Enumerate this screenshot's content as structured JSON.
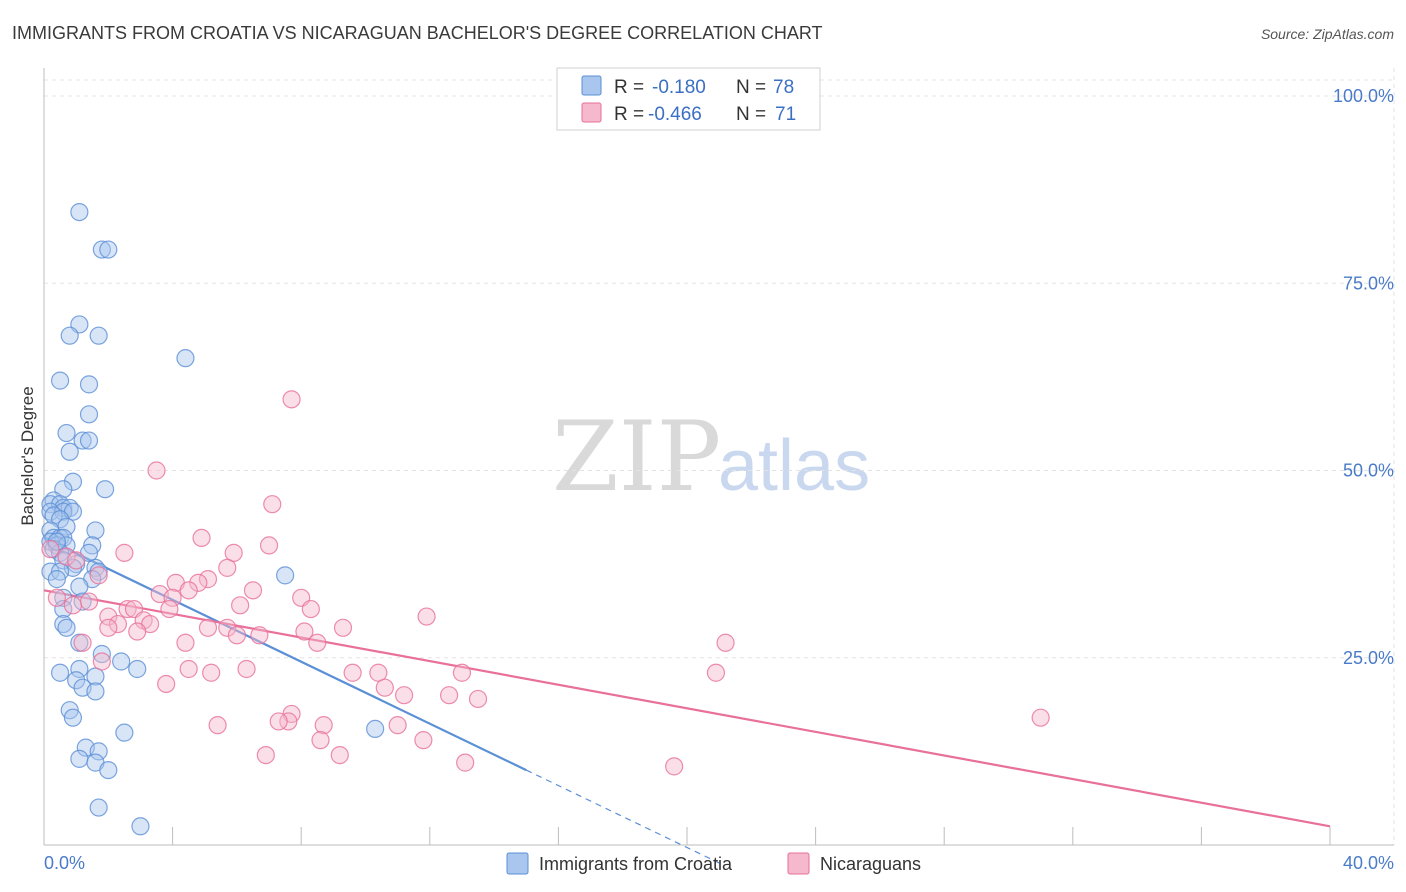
{
  "chart_data": {
    "type": "scatter",
    "title": "IMMIGRANTS FROM CROATIA VS NICARAGUAN BACHELOR'S DEGREE CORRELATION CHART",
    "source": "Source: ZipAtlas.com",
    "ylabel": "Bachelor's Degree",
    "xlabel": "",
    "xlim": [
      0,
      40
    ],
    "ylim": [
      0,
      100
    ],
    "x_tick_labels": {
      "min": "0.0%",
      "max": "40.0%"
    },
    "y_ticks": [
      {
        "value": 25,
        "label": "25.0%"
      },
      {
        "value": 50,
        "label": "50.0%"
      },
      {
        "value": 75,
        "label": "75.0%"
      },
      {
        "value": 100,
        "label": "100.0%"
      }
    ],
    "grid": true,
    "legend_position": "top-center",
    "watermark": {
      "part1": "ZIP",
      "part2": "atlas"
    },
    "series": [
      {
        "name": "Immigrants from Croatia",
        "color": "#5b8fd6",
        "fill": "#a9c6ee",
        "R_label": "R =",
        "R": "-0.180",
        "N_label": "N =",
        "N": "78",
        "trend": {
          "x0": 0.0,
          "y0": 41.0,
          "x1": 15.0,
          "y1": 10.0,
          "dash_to_x": 21.0
        },
        "points": [
          [
            1.1,
            84.5
          ],
          [
            1.8,
            79.5
          ],
          [
            2.0,
            79.5
          ],
          [
            1.1,
            69.5
          ],
          [
            0.8,
            68.0
          ],
          [
            1.7,
            68.0
          ],
          [
            4.4,
            65.0
          ],
          [
            0.5,
            62.0
          ],
          [
            1.4,
            61.5
          ],
          [
            1.4,
            57.5
          ],
          [
            0.7,
            55.0
          ],
          [
            1.2,
            54.0
          ],
          [
            1.4,
            54.0
          ],
          [
            0.8,
            52.5
          ],
          [
            0.9,
            48.5
          ],
          [
            0.6,
            47.5
          ],
          [
            1.9,
            47.5
          ],
          [
            0.3,
            46.0
          ],
          [
            0.2,
            45.5
          ],
          [
            0.5,
            45.5
          ],
          [
            0.6,
            45.0
          ],
          [
            0.8,
            45.0
          ],
          [
            0.2,
            44.5
          ],
          [
            0.6,
            44.5
          ],
          [
            0.9,
            44.5
          ],
          [
            0.3,
            44.0
          ],
          [
            0.5,
            43.5
          ],
          [
            0.7,
            42.5
          ],
          [
            0.2,
            42.0
          ],
          [
            1.6,
            42.0
          ],
          [
            0.3,
            41.0
          ],
          [
            0.5,
            41.0
          ],
          [
            0.6,
            41.0
          ],
          [
            0.2,
            40.5
          ],
          [
            0.4,
            40.0
          ],
          [
            0.7,
            40.0
          ],
          [
            0.3,
            39.5
          ],
          [
            1.5,
            40.0
          ],
          [
            0.5,
            39.0
          ],
          [
            1.4,
            39.0
          ],
          [
            0.6,
            38.0
          ],
          [
            1.0,
            37.5
          ],
          [
            0.9,
            37.0
          ],
          [
            1.6,
            37.0
          ],
          [
            0.2,
            36.5
          ],
          [
            0.5,
            36.5
          ],
          [
            1.7,
            36.5
          ],
          [
            7.5,
            36.0
          ],
          [
            0.4,
            35.5
          ],
          [
            1.5,
            35.5
          ],
          [
            1.1,
            34.5
          ],
          [
            0.6,
            33.0
          ],
          [
            1.2,
            32.5
          ],
          [
            0.6,
            31.5
          ],
          [
            0.6,
            29.5
          ],
          [
            0.7,
            29.0
          ],
          [
            1.1,
            27.0
          ],
          [
            1.8,
            25.5
          ],
          [
            2.4,
            24.5
          ],
          [
            2.9,
            23.5
          ],
          [
            1.1,
            23.5
          ],
          [
            0.5,
            23.0
          ],
          [
            1.6,
            22.5
          ],
          [
            1.0,
            22.0
          ],
          [
            1.2,
            21.0
          ],
          [
            1.6,
            20.5
          ],
          [
            0.8,
            18.0
          ],
          [
            0.9,
            17.0
          ],
          [
            2.5,
            15.0
          ],
          [
            10.3,
            15.5
          ],
          [
            1.3,
            13.0
          ],
          [
            1.7,
            12.5
          ],
          [
            1.1,
            11.5
          ],
          [
            1.6,
            11.0
          ],
          [
            2.0,
            10.0
          ],
          [
            1.7,
            5.0
          ],
          [
            3.0,
            2.5
          ],
          [
            0.4,
            40.5
          ]
        ]
      },
      {
        "name": "Nicaraguans",
        "color": "#e8709a",
        "fill": "#f5b8cc",
        "R_label": "R =",
        "R": "-0.466",
        "N_label": "N =",
        "N": "71",
        "trend": {
          "x0": 0.0,
          "y0": 34.0,
          "x1": 40.0,
          "y1": 2.5
        },
        "points": [
          [
            7.7,
            59.5
          ],
          [
            3.5,
            50.0
          ],
          [
            7.1,
            45.5
          ],
          [
            4.9,
            41.0
          ],
          [
            7.0,
            40.0
          ],
          [
            0.2,
            39.5
          ],
          [
            0.7,
            38.5
          ],
          [
            2.5,
            39.0
          ],
          [
            5.9,
            39.0
          ],
          [
            1.0,
            38.0
          ],
          [
            5.7,
            37.0
          ],
          [
            1.7,
            36.0
          ],
          [
            4.1,
            35.0
          ],
          [
            5.1,
            35.5
          ],
          [
            4.8,
            35.0
          ],
          [
            6.5,
            34.0
          ],
          [
            4.5,
            34.0
          ],
          [
            3.6,
            33.5
          ],
          [
            4.0,
            33.0
          ],
          [
            8.0,
            33.0
          ],
          [
            0.4,
            33.0
          ],
          [
            1.4,
            32.5
          ],
          [
            0.9,
            32.0
          ],
          [
            6.1,
            32.0
          ],
          [
            3.9,
            31.5
          ],
          [
            8.3,
            31.5
          ],
          [
            2.6,
            31.5
          ],
          [
            2.8,
            31.5
          ],
          [
            2.0,
            30.5
          ],
          [
            3.1,
            30.0
          ],
          [
            11.9,
            30.5
          ],
          [
            2.3,
            29.5
          ],
          [
            3.3,
            29.5
          ],
          [
            2.0,
            29.0
          ],
          [
            5.7,
            29.0
          ],
          [
            5.1,
            29.0
          ],
          [
            9.3,
            29.0
          ],
          [
            2.9,
            28.5
          ],
          [
            6.0,
            28.0
          ],
          [
            6.7,
            28.0
          ],
          [
            8.1,
            28.5
          ],
          [
            8.5,
            27.0
          ],
          [
            1.2,
            27.0
          ],
          [
            4.4,
            27.0
          ],
          [
            21.2,
            27.0
          ],
          [
            1.8,
            24.5
          ],
          [
            4.5,
            23.5
          ],
          [
            6.3,
            23.5
          ],
          [
            5.2,
            23.0
          ],
          [
            9.6,
            23.0
          ],
          [
            10.4,
            23.0
          ],
          [
            13.0,
            23.0
          ],
          [
            20.9,
            23.0
          ],
          [
            3.8,
            21.5
          ],
          [
            10.6,
            21.0
          ],
          [
            11.2,
            20.0
          ],
          [
            12.6,
            20.0
          ],
          [
            13.5,
            19.5
          ],
          [
            8.7,
            16.0
          ],
          [
            7.7,
            17.5
          ],
          [
            7.6,
            16.5
          ],
          [
            5.4,
            16.0
          ],
          [
            11.0,
            16.0
          ],
          [
            7.3,
            16.5
          ],
          [
            31.0,
            17.0
          ],
          [
            8.6,
            14.0
          ],
          [
            11.8,
            14.0
          ],
          [
            6.9,
            12.0
          ],
          [
            9.2,
            12.0
          ],
          [
            13.1,
            11.0
          ],
          [
            19.6,
            10.5
          ]
        ]
      }
    ]
  }
}
